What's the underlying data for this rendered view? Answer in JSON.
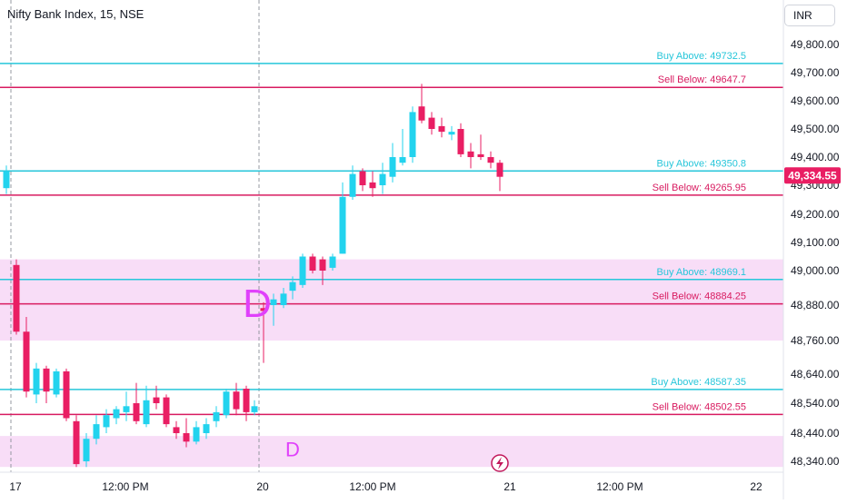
{
  "header": {
    "title": "Nifty Bank Index, 15, NSE",
    "currency": "INR"
  },
  "colors": {
    "bull": "#22d3ee",
    "bear": "#e91e63",
    "buy_line": "#26c6da",
    "sell_line": "#d81b60",
    "zone": "#f8ddf7",
    "marker": "#e040fb",
    "price_tag": "#e91e63"
  },
  "chart_data": {
    "type": "candlestick",
    "instrument": "Nifty Bank Index",
    "interval": "15",
    "exchange": "NSE",
    "last_price_label": "49,334.55",
    "last_price": 49334.55,
    "y_ticks": [
      "49,800.00",
      "49,700.00",
      "49,600.00",
      "49,500.00",
      "49,400.00",
      "49,300.00",
      "49,200.00",
      "49,100.00",
      "49,000.00",
      "48,880.00",
      "48,760.00",
      "48,640.00",
      "48,540.00",
      "48,440.00",
      "48,340.00"
    ],
    "y_tick_values": [
      49800,
      49700,
      49600,
      49500,
      49400,
      49300,
      49200,
      49100,
      49000,
      48880,
      48760,
      48640,
      48540,
      48440,
      48340
    ],
    "x_ticks": [
      "17",
      "12:00 PM",
      "20",
      "12:00 PM",
      "21",
      "12:00 PM",
      "22"
    ],
    "levels": [
      {
        "label": "Buy Above: 49732.5",
        "value": 49732.5,
        "side": "buy"
      },
      {
        "label": "Sell Below: 49647.7",
        "value": 49647.7,
        "side": "sell"
      },
      {
        "label": "Buy Above: 49350.8",
        "value": 49350.8,
        "side": "buy"
      },
      {
        "label": "Sell Below: 49265.95",
        "value": 49265.95,
        "side": "sell"
      },
      {
        "label": "Buy Above: 48969.1",
        "value": 48969.1,
        "side": "buy"
      },
      {
        "label": "Sell Below: 48884.25",
        "value": 48884.25,
        "side": "sell"
      },
      {
        "label": "Buy Above: 48587.35",
        "value": 48587.35,
        "side": "buy"
      },
      {
        "label": "Sell Below: 48502.55",
        "value": 48502.55,
        "side": "sell"
      }
    ],
    "zones": [
      {
        "from": 48760,
        "to": 49040
      },
      {
        "from": 48320,
        "to": 48430
      }
    ],
    "markers": [
      {
        "text": "D",
        "x": 283,
        "y": 48890
      },
      {
        "text": "D",
        "x": 322,
        "y": 48390
      }
    ],
    "candles": [
      {
        "x": 7,
        "o": 49290,
        "h": 49370,
        "l": 49270,
        "c": 49350
      },
      {
        "x": 18,
        "o": 49020,
        "h": 49040,
        "l": 48780,
        "c": 48790
      },
      {
        "x": 29,
        "o": 48790,
        "h": 48840,
        "l": 48560,
        "c": 48580
      },
      {
        "x": 40,
        "o": 48570,
        "h": 48680,
        "l": 48540,
        "c": 48660
      },
      {
        "x": 51,
        "o": 48660,
        "h": 48670,
        "l": 48540,
        "c": 48580
      },
      {
        "x": 62,
        "o": 48570,
        "h": 48660,
        "l": 48560,
        "c": 48650
      },
      {
        "x": 73,
        "o": 48650,
        "h": 48660,
        "l": 48480,
        "c": 48490
      },
      {
        "x": 84,
        "o": 48480,
        "h": 48500,
        "l": 48320,
        "c": 48330
      },
      {
        "x": 95,
        "o": 48340,
        "h": 48440,
        "l": 48320,
        "c": 48420
      },
      {
        "x": 106,
        "o": 48420,
        "h": 48500,
        "l": 48400,
        "c": 48470
      },
      {
        "x": 117,
        "o": 48460,
        "h": 48520,
        "l": 48440,
        "c": 48500
      },
      {
        "x": 128,
        "o": 48490,
        "h": 48530,
        "l": 48470,
        "c": 48520
      },
      {
        "x": 139,
        "o": 48510,
        "h": 48580,
        "l": 48480,
        "c": 48530
      },
      {
        "x": 150,
        "o": 48540,
        "h": 48610,
        "l": 48470,
        "c": 48480
      },
      {
        "x": 161,
        "o": 48470,
        "h": 48600,
        "l": 48460,
        "c": 48550
      },
      {
        "x": 172,
        "o": 48560,
        "h": 48600,
        "l": 48520,
        "c": 48540
      },
      {
        "x": 183,
        "o": 48560,
        "h": 48570,
        "l": 48460,
        "c": 48470
      },
      {
        "x": 194,
        "o": 48460,
        "h": 48480,
        "l": 48420,
        "c": 48440
      },
      {
        "x": 205,
        "o": 48440,
        "h": 48490,
        "l": 48390,
        "c": 48410
      },
      {
        "x": 216,
        "o": 48410,
        "h": 48480,
        "l": 48400,
        "c": 48460
      },
      {
        "x": 227,
        "o": 48440,
        "h": 48490,
        "l": 48420,
        "c": 48470
      },
      {
        "x": 238,
        "o": 48480,
        "h": 48530,
        "l": 48460,
        "c": 48510
      },
      {
        "x": 249,
        "o": 48500,
        "h": 48590,
        "l": 48490,
        "c": 48580
      },
      {
        "x": 260,
        "o": 48580,
        "h": 48610,
        "l": 48500,
        "c": 48520
      },
      {
        "x": 271,
        "o": 48590,
        "h": 48600,
        "l": 48480,
        "c": 48510
      },
      {
        "x": 280,
        "o": 48510,
        "h": 48550,
        "l": 48500,
        "c": 48530
      },
      {
        "x": 290,
        "o": 48870,
        "h": 48890,
        "l": 48680,
        "c": 48860
      },
      {
        "x": 301,
        "o": 48880,
        "h": 48920,
        "l": 48810,
        "c": 48900
      },
      {
        "x": 312,
        "o": 48880,
        "h": 48940,
        "l": 48870,
        "c": 48920
      },
      {
        "x": 322,
        "o": 48930,
        "h": 48980,
        "l": 48900,
        "c": 48960
      },
      {
        "x": 333,
        "o": 48950,
        "h": 49060,
        "l": 48940,
        "c": 49050
      },
      {
        "x": 344,
        "o": 49050,
        "h": 49060,
        "l": 48990,
        "c": 49000
      },
      {
        "x": 355,
        "o": 49040,
        "h": 49050,
        "l": 48950,
        "c": 49000
      },
      {
        "x": 366,
        "o": 49010,
        "h": 49060,
        "l": 49000,
        "c": 49050
      },
      {
        "x": 377,
        "o": 49060,
        "h": 49310,
        "l": 49060,
        "c": 49260
      },
      {
        "x": 388,
        "o": 49260,
        "h": 49370,
        "l": 49250,
        "c": 49340
      },
      {
        "x": 399,
        "o": 49350,
        "h": 49360,
        "l": 49280,
        "c": 49300
      },
      {
        "x": 410,
        "o": 49310,
        "h": 49350,
        "l": 49260,
        "c": 49290
      },
      {
        "x": 421,
        "o": 49300,
        "h": 49380,
        "l": 49270,
        "c": 49340
      },
      {
        "x": 432,
        "o": 49330,
        "h": 49450,
        "l": 49310,
        "c": 49400
      },
      {
        "x": 443,
        "o": 49380,
        "h": 49500,
        "l": 49370,
        "c": 49400
      },
      {
        "x": 454,
        "o": 49400,
        "h": 49580,
        "l": 49380,
        "c": 49560
      },
      {
        "x": 464,
        "o": 49580,
        "h": 49660,
        "l": 49520,
        "c": 49530
      },
      {
        "x": 475,
        "o": 49540,
        "h": 49560,
        "l": 49480,
        "c": 49500
      },
      {
        "x": 486,
        "o": 49510,
        "h": 49540,
        "l": 49470,
        "c": 49490
      },
      {
        "x": 497,
        "o": 49480,
        "h": 49510,
        "l": 49460,
        "c": 49490
      },
      {
        "x": 507,
        "o": 49500,
        "h": 49520,
        "l": 49400,
        "c": 49410
      },
      {
        "x": 518,
        "o": 49420,
        "h": 49450,
        "l": 49360,
        "c": 49400
      },
      {
        "x": 529,
        "o": 49410,
        "h": 49480,
        "l": 49390,
        "c": 49400
      },
      {
        "x": 540,
        "o": 49400,
        "h": 49420,
        "l": 49360,
        "c": 49380
      },
      {
        "x": 550,
        "o": 49380,
        "h": 49390,
        "l": 49280,
        "c": 49330
      }
    ]
  }
}
